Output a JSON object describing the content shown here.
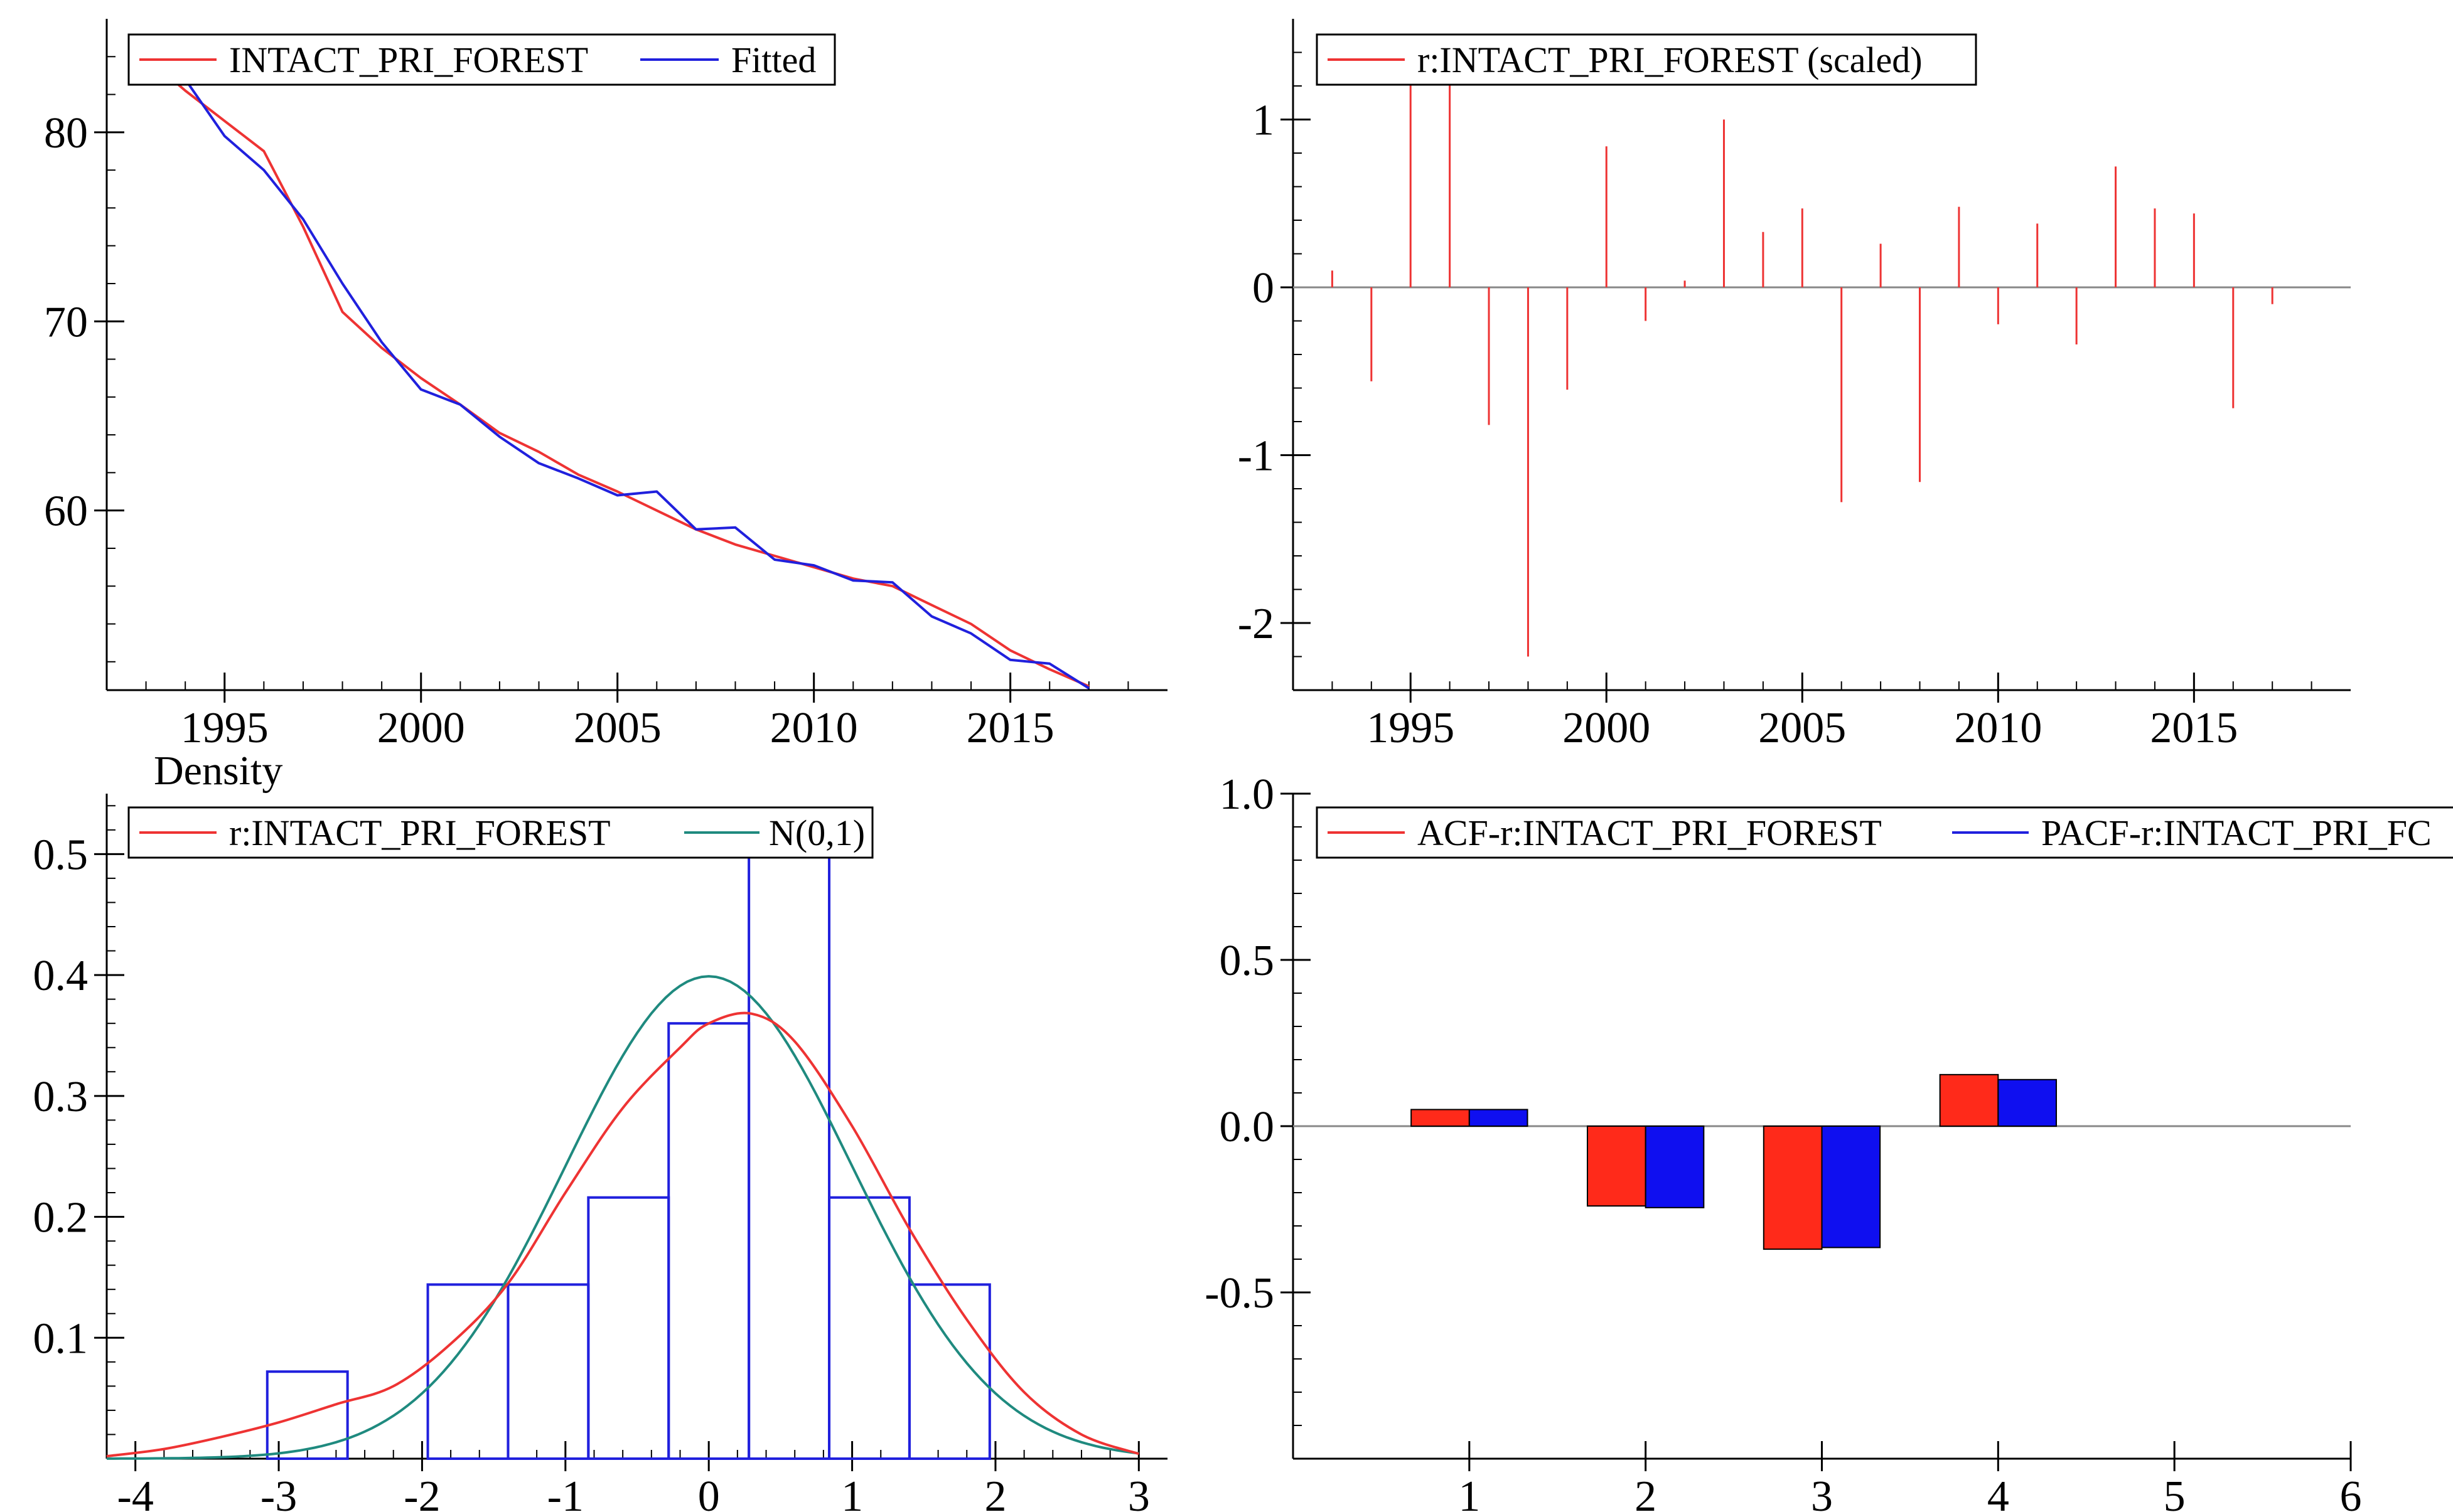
{
  "colors": {
    "red": "#ee3333",
    "blue": "#2020dd",
    "teal": "#1f8a7f",
    "bar_red": "#ff2a1a",
    "bar_blue": "#0f0ff0"
  },
  "chart_data": [
    {
      "id": "fitted",
      "type": "line",
      "title": "",
      "xlim": [
        1992,
        2019
      ],
      "ylim": [
        50.5,
        86
      ],
      "x_ticks": [
        1995,
        2000,
        2005,
        2010,
        2015
      ],
      "y_ticks": [
        60,
        70,
        80
      ],
      "legend": [
        "INTACT_PRI_FOREST",
        "Fitted"
      ],
      "legend_placement": "top-left",
      "x": [
        1993,
        1994,
        1995,
        1996,
        1997,
        1998,
        1999,
        2000,
        2001,
        2002,
        2003,
        2004,
        2005,
        2006,
        2007,
        2008,
        2009,
        2010,
        2011,
        2012,
        2013,
        2014,
        2015,
        2016,
        2017
      ],
      "series": [
        {
          "name": "INTACT_PRI_FOREST",
          "color": "red",
          "values": [
            84.0,
            82.2,
            80.6,
            79.0,
            75.0,
            70.5,
            68.6,
            67.0,
            65.6,
            64.1,
            63.1,
            61.9,
            61.0,
            60.0,
            59.0,
            58.2,
            57.6,
            57.0,
            56.4,
            56.0,
            55.0,
            54.0,
            52.6,
            51.6,
            50.7
          ]
        },
        {
          "name": "Fitted",
          "color": "blue",
          "values": [
            84.5,
            82.8,
            79.8,
            78.0,
            75.4,
            72.0,
            68.9,
            66.4,
            65.6,
            63.9,
            62.5,
            61.7,
            60.8,
            61.0,
            59.0,
            59.1,
            57.4,
            57.1,
            56.3,
            56.2,
            54.4,
            53.5,
            52.1,
            51.9,
            50.6
          ]
        }
      ]
    },
    {
      "id": "residuals",
      "type": "bar",
      "title": "",
      "xlim": [
        1992,
        2019
      ],
      "ylim": [
        -2.4,
        1.6
      ],
      "x_ticks": [
        1995,
        2000,
        2005,
        2010,
        2015
      ],
      "y_ticks": [
        -2,
        -1,
        0,
        1
      ],
      "legend": [
        "r:INTACT_PRI_FOREST (scaled)"
      ],
      "legend_placement": "top-left",
      "x": [
        1993,
        1994,
        1995,
        1996,
        1997,
        1998,
        1999,
        2000,
        2001,
        2002,
        2003,
        2004,
        2005,
        2006,
        2007,
        2008,
        2009,
        2010,
        2011,
        2012,
        2013,
        2014,
        2015,
        2016,
        2017
      ],
      "values": [
        0.1,
        -0.56,
        1.3,
        1.5,
        -0.82,
        -2.2,
        -0.61,
        0.84,
        -0.2,
        0.04,
        1.0,
        0.33,
        0.47,
        -1.28,
        0.26,
        -1.16,
        0.48,
        -0.22,
        0.38,
        -0.34,
        0.72,
        0.47,
        0.44,
        -0.72,
        -0.1
      ]
    },
    {
      "id": "density",
      "type": "histogram",
      "title": "",
      "ylabel": "Density",
      "xlim": [
        -4.2,
        3.2
      ],
      "ylim": [
        0,
        0.55
      ],
      "x_ticks": [
        -4,
        -3,
        -2,
        -1,
        0,
        1,
        2,
        3
      ],
      "y_ticks": [
        0.1,
        0.2,
        0.3,
        0.4,
        0.5
      ],
      "legend": [
        "r:INTACT_PRI_FOREST",
        "N(0,1)"
      ],
      "legend_placement": "top-left",
      "bins": [
        {
          "from": -3.08,
          "to": -2.52,
          "value": 0.072
        },
        {
          "from": -1.96,
          "to": -1.4,
          "value": 0.144
        },
        {
          "from": -1.4,
          "to": -0.84,
          "value": 0.144
        },
        {
          "from": -0.84,
          "to": -0.28,
          "value": 0.216
        },
        {
          "from": -0.28,
          "to": 0.28,
          "value": 0.36
        },
        {
          "from": 0.28,
          "to": 0.84,
          "value": 0.503
        },
        {
          "from": 0.84,
          "to": 1.4,
          "value": 0.216
        },
        {
          "from": 1.4,
          "to": 1.96,
          "value": 0.144
        }
      ],
      "kde": {
        "x": [
          -4.2,
          -3.8,
          -3.4,
          -3.0,
          -2.6,
          -2.2,
          -1.8,
          -1.4,
          -1.0,
          -0.6,
          -0.2,
          0.0,
          0.3,
          0.6,
          1.0,
          1.4,
          1.8,
          2.2,
          2.6,
          3.0
        ],
        "y": [
          0.002,
          0.008,
          0.018,
          0.03,
          0.045,
          0.06,
          0.095,
          0.145,
          0.22,
          0.29,
          0.34,
          0.36,
          0.368,
          0.345,
          0.275,
          0.19,
          0.115,
          0.055,
          0.02,
          0.004
        ]
      },
      "normal": {
        "mean": 0,
        "sd": 1,
        "x_from": -4.2,
        "x_to": 3.0
      }
    },
    {
      "id": "correlogram",
      "type": "bar",
      "title": "",
      "xlim": [
        0,
        6
      ],
      "ylim": [
        -1,
        1
      ],
      "x_ticks": [
        1,
        2,
        3,
        4,
        5,
        6
      ],
      "y_ticks": [
        -0.5,
        0.0,
        0.5,
        1.0
      ],
      "y_tick_labels": [
        "-0.5",
        "0.0",
        "0.5",
        "1.0"
      ],
      "legend": [
        "ACF-r:INTACT_PRI_FOREST",
        "PACF-r:INTACT_PRI_FC"
      ],
      "legend_placement": "top-left",
      "categories": [
        1,
        2,
        3,
        4
      ],
      "series": [
        {
          "name": "ACF-r:INTACT_PRI_FOREST",
          "color": "bar_red",
          "values": [
            0.05,
            -0.24,
            -0.37,
            0.155
          ]
        },
        {
          "name": "PACF-r:INTACT_PRI_FOREST",
          "color": "bar_blue",
          "values": [
            0.05,
            -0.245,
            -0.365,
            0.14
          ]
        }
      ]
    }
  ]
}
